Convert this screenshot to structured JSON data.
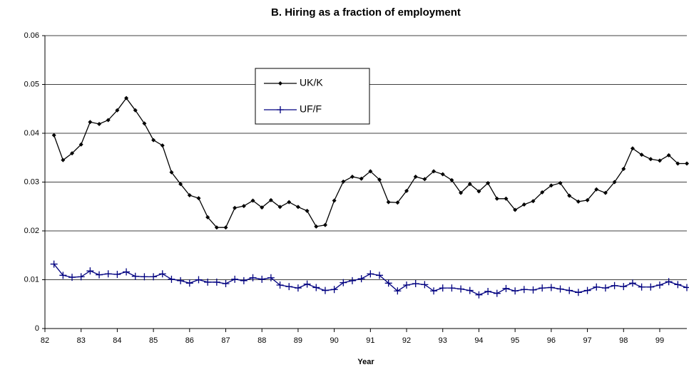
{
  "chart_data": {
    "type": "line",
    "title": "B. Hiring as a fraction of employment",
    "x_label": "Year",
    "x": [
      82.25,
      82.5,
      82.75,
      83,
      83.25,
      83.5,
      83.75,
      84,
      84.25,
      84.5,
      84.75,
      85,
      85.25,
      85.5,
      85.75,
      86,
      86.25,
      86.5,
      86.75,
      87,
      87.25,
      87.5,
      87.75,
      88,
      88.25,
      88.5,
      88.75,
      89,
      89.25,
      89.5,
      89.75,
      90,
      90.25,
      90.5,
      90.75,
      91,
      91.25,
      91.5,
      91.75,
      92,
      92.25,
      92.5,
      92.75,
      93,
      93.25,
      93.5,
      93.75,
      94,
      94.25,
      94.5,
      94.75,
      95,
      95.25,
      95.5,
      95.75,
      96,
      96.25,
      96.5,
      96.75,
      97,
      97.25,
      97.5,
      97.75,
      98,
      98.25,
      98.5,
      98.75,
      99,
      99.25,
      99.5,
      99.75
    ],
    "series": [
      {
        "name": "UK/K",
        "color": "#000000",
        "marker": "diamond",
        "values": [
          0.0396,
          0.0345,
          0.0359,
          0.0377,
          0.0423,
          0.0419,
          0.0427,
          0.0447,
          0.0472,
          0.0447,
          0.042,
          0.0386,
          0.0375,
          0.032,
          0.0296,
          0.0273,
          0.0267,
          0.0228,
          0.0207,
          0.0207,
          0.0247,
          0.0251,
          0.0262,
          0.0248,
          0.0263,
          0.0249,
          0.0259,
          0.0249,
          0.0241,
          0.0209,
          0.0212,
          0.0262,
          0.0301,
          0.0311,
          0.0307,
          0.0322,
          0.0305,
          0.0259,
          0.0258,
          0.0282,
          0.0311,
          0.0306,
          0.0322,
          0.0316,
          0.0304,
          0.0278,
          0.0296,
          0.0281,
          0.0298,
          0.0266,
          0.0266,
          0.0243,
          0.0254,
          0.0261,
          0.0279,
          0.0293,
          0.0298,
          0.0272,
          0.026,
          0.0263,
          0.0285,
          0.0278,
          0.03,
          0.0327,
          0.0369,
          0.0356,
          0.0347,
          0.0344,
          0.0355,
          0.0338,
          0.0338
        ]
      },
      {
        "name": "UF/F",
        "color": "#000080",
        "marker": "plus",
        "values": [
          0.0132,
          0.0109,
          0.0105,
          0.0106,
          0.0118,
          0.011,
          0.0112,
          0.0111,
          0.0116,
          0.0107,
          0.0106,
          0.0106,
          0.0112,
          0.0101,
          0.0098,
          0.0093,
          0.01,
          0.0095,
          0.0095,
          0.0092,
          0.0101,
          0.0098,
          0.0104,
          0.0101,
          0.0104,
          0.0089,
          0.0086,
          0.0083,
          0.0091,
          0.0084,
          0.0078,
          0.008,
          0.0094,
          0.0098,
          0.0102,
          0.0112,
          0.0109,
          0.0093,
          0.0077,
          0.0089,
          0.0092,
          0.009,
          0.0077,
          0.0083,
          0.0083,
          0.0081,
          0.0078,
          0.0069,
          0.0076,
          0.0072,
          0.0082,
          0.0077,
          0.008,
          0.0079,
          0.0083,
          0.0084,
          0.0081,
          0.0078,
          0.0074,
          0.0078,
          0.0085,
          0.0083,
          0.0088,
          0.0086,
          0.0093,
          0.0085,
          0.0085,
          0.0089,
          0.0096,
          0.009,
          0.0084
        ]
      }
    ],
    "xlim": [
      82,
      99.75
    ],
    "xticks": [
      82,
      83,
      84,
      85,
      86,
      87,
      88,
      89,
      90,
      91,
      92,
      93,
      94,
      95,
      96,
      97,
      98,
      99
    ],
    "ylim": [
      0,
      0.06
    ],
    "yticks": [
      0,
      0.01,
      0.02,
      0.03,
      0.04,
      0.05,
      0.06
    ],
    "grid": true
  }
}
